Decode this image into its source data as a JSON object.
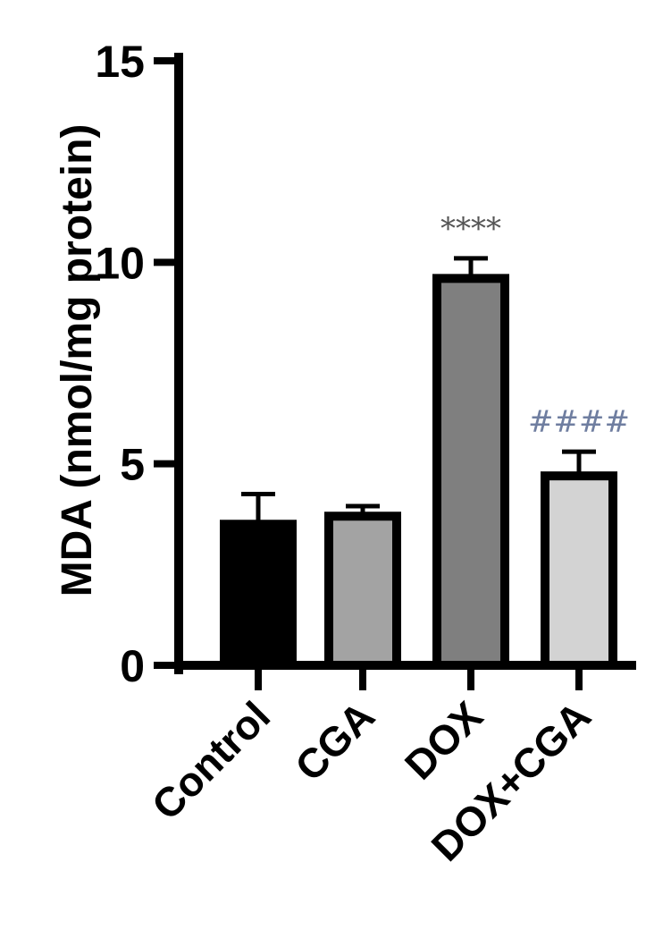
{
  "chart_data": {
    "type": "bar",
    "ylabel": "MDA (nmol/mg protein)",
    "xlabel": "",
    "ylim": [
      0,
      15
    ],
    "yticks": [
      0,
      5,
      10,
      15
    ],
    "grid": false,
    "categories": [
      "Control",
      "CGA",
      "DOX",
      "DOX+CGA"
    ],
    "values": [
      3.5,
      3.7,
      9.6,
      4.7
    ],
    "errors": [
      0.75,
      0.25,
      0.5,
      0.6
    ],
    "bar_colors": [
      "#000000",
      "#a3a3a3",
      "#7f7f7f",
      "#d3d3d3"
    ],
    "annotations": [
      {
        "category": "DOX",
        "text": "****",
        "color": "#555555"
      },
      {
        "category": "DOX+CGA",
        "text": "####",
        "color": "#6f7ea0"
      }
    ]
  }
}
